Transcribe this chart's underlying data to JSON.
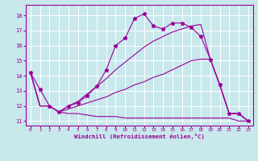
{
  "xlabel": "Windchill (Refroidissement éolien,°C)",
  "background_color": "#c8e8ec",
  "line_color": "#990099",
  "grid_color": "#ffffff",
  "xlim": [
    -0.5,
    23.5
  ],
  "ylim": [
    10.7,
    18.7
  ],
  "yticks": [
    11,
    12,
    13,
    14,
    15,
    16,
    17,
    18
  ],
  "xticks": [
    0,
    1,
    2,
    3,
    4,
    5,
    6,
    7,
    8,
    9,
    10,
    11,
    12,
    13,
    14,
    15,
    16,
    17,
    18,
    19,
    20,
    21,
    22,
    23
  ],
  "lines": [
    {
      "x": [
        0,
        1,
        2,
        3,
        4,
        5,
        6,
        7,
        8,
        9,
        10,
        11,
        12,
        13,
        14,
        15,
        16,
        17,
        18,
        19,
        20,
        21,
        22,
        23
      ],
      "y": [
        14.2,
        13.1,
        12.0,
        11.6,
        12.0,
        12.2,
        12.7,
        13.3,
        14.4,
        16.0,
        16.5,
        17.8,
        18.1,
        17.3,
        17.1,
        17.5,
        17.5,
        17.2,
        16.6,
        15.1,
        13.4,
        11.5,
        11.5,
        11.0
      ],
      "marker": true
    },
    {
      "x": [
        0,
        1,
        2,
        3,
        4,
        5,
        6,
        7,
        8,
        9,
        10,
        11,
        12,
        13,
        14,
        15,
        16,
        17,
        18,
        19,
        20,
        21,
        22,
        23
      ],
      "y": [
        14.2,
        12.0,
        12.0,
        11.6,
        11.8,
        12.0,
        12.2,
        12.4,
        12.6,
        12.9,
        13.1,
        13.4,
        13.6,
        13.9,
        14.1,
        14.4,
        14.7,
        15.0,
        15.1,
        15.1,
        13.4,
        11.5,
        11.5,
        11.0
      ],
      "marker": false
    },
    {
      "x": [
        0,
        1,
        2,
        3,
        4,
        5,
        6,
        7,
        8,
        9,
        10,
        11,
        12,
        13,
        14,
        15,
        16,
        17,
        18,
        19,
        20,
        21,
        22,
        23
      ],
      "y": [
        14.2,
        12.0,
        12.0,
        11.6,
        11.5,
        11.5,
        11.4,
        11.3,
        11.3,
        11.3,
        11.2,
        11.2,
        11.2,
        11.2,
        11.2,
        11.2,
        11.2,
        11.2,
        11.2,
        11.2,
        11.2,
        11.2,
        11.0,
        11.0
      ],
      "marker": false
    },
    {
      "x": [
        0,
        1,
        2,
        3,
        4,
        5,
        6,
        7,
        8,
        9,
        10,
        11,
        12,
        13,
        14,
        15,
        16,
        17,
        18,
        19,
        20,
        21,
        22,
        23
      ],
      "y": [
        14.2,
        12.0,
        12.0,
        11.6,
        12.0,
        12.3,
        12.8,
        13.3,
        13.8,
        14.4,
        14.9,
        15.4,
        15.9,
        16.3,
        16.6,
        16.9,
        17.1,
        17.3,
        17.4,
        15.1,
        13.4,
        11.5,
        11.5,
        11.0
      ],
      "marker": false
    }
  ]
}
